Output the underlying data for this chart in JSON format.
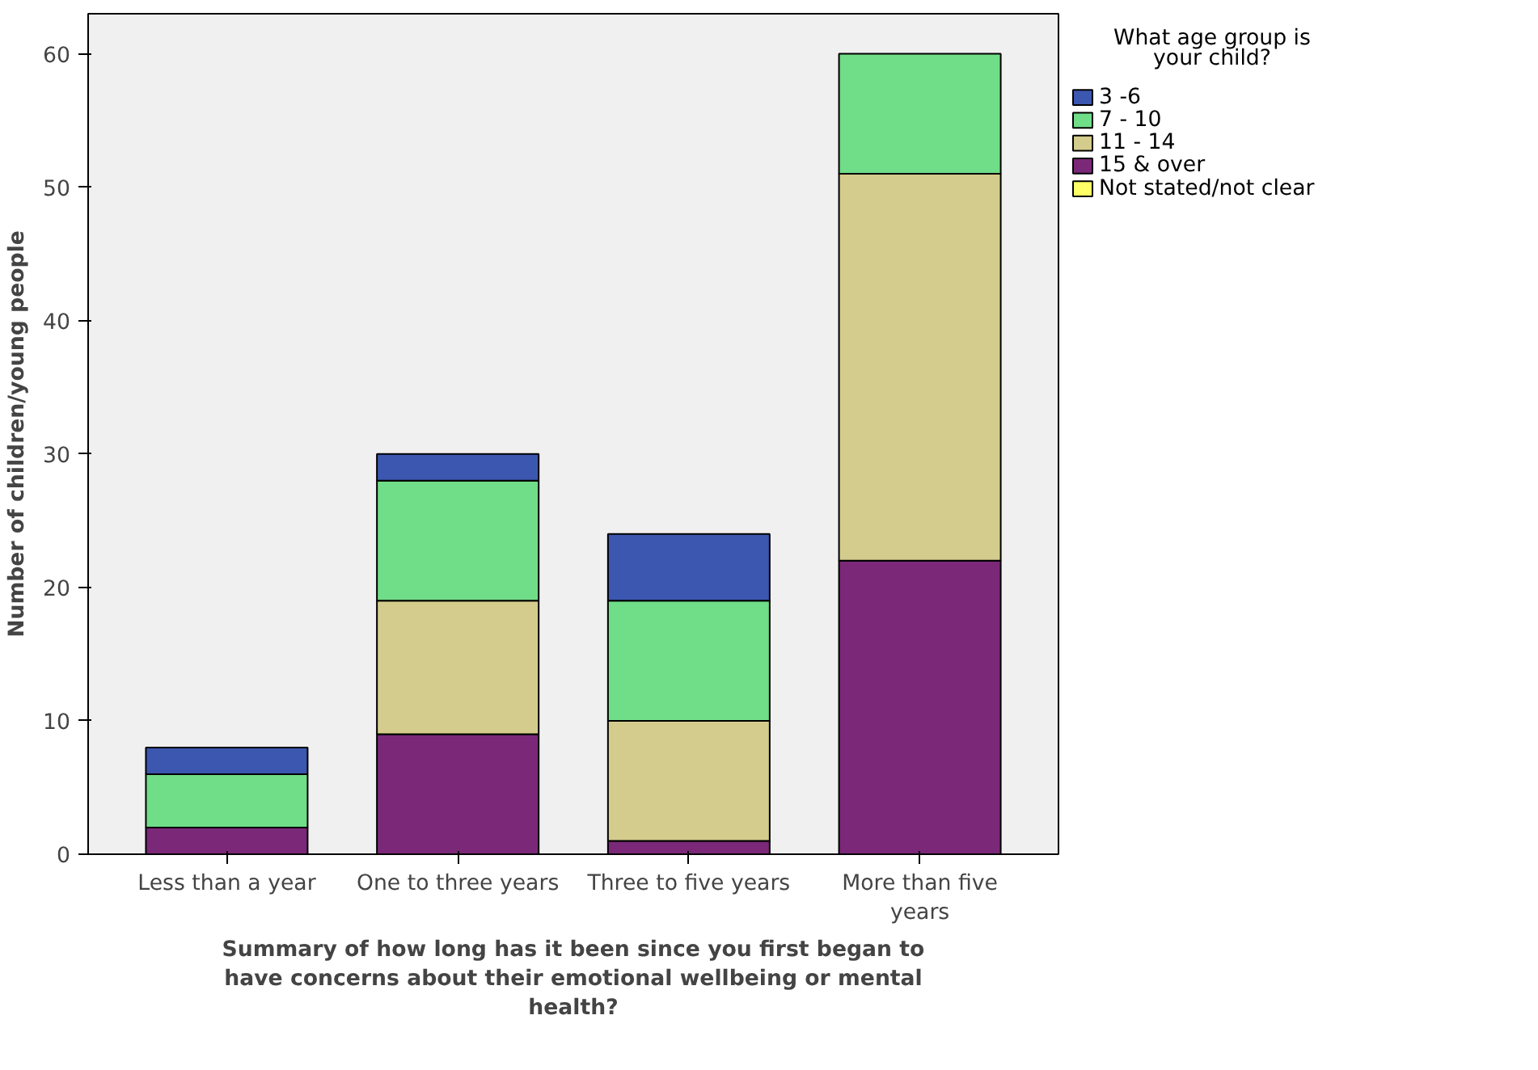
{
  "chart_data": {
    "type": "bar",
    "stacked": true,
    "categories": [
      "Less than a year",
      "One to three years",
      "Three to five years",
      "More than five years"
    ],
    "xlabel": "Summary of how long has it been since you first began to have concerns about their emotional wellbeing or mental health?",
    "ylabel": "Number of children/young people",
    "legend_title": "What age group is your child?",
    "ylim": [
      0,
      63
    ],
    "yticks": [
      0,
      10,
      20,
      30,
      40,
      50,
      60
    ],
    "grid": false,
    "legend": "right",
    "series": [
      {
        "name": "15 & over",
        "color": "#7b2878",
        "values": [
          2,
          9,
          1,
          22
        ]
      },
      {
        "name": "11 - 14",
        "color": "#d4cc8c",
        "values": [
          0,
          10,
          9,
          29
        ]
      },
      {
        "name": "7 - 10",
        "color": "#70dd88",
        "values": [
          4,
          9,
          9,
          9
        ]
      },
      {
        "name": "3 -6",
        "color": "#3b57b0",
        "values": [
          2,
          2,
          5,
          0
        ]
      },
      {
        "name": "Not stated/not clear",
        "color": "#ffff66",
        "values": [
          0,
          0,
          0,
          0
        ]
      }
    ]
  }
}
